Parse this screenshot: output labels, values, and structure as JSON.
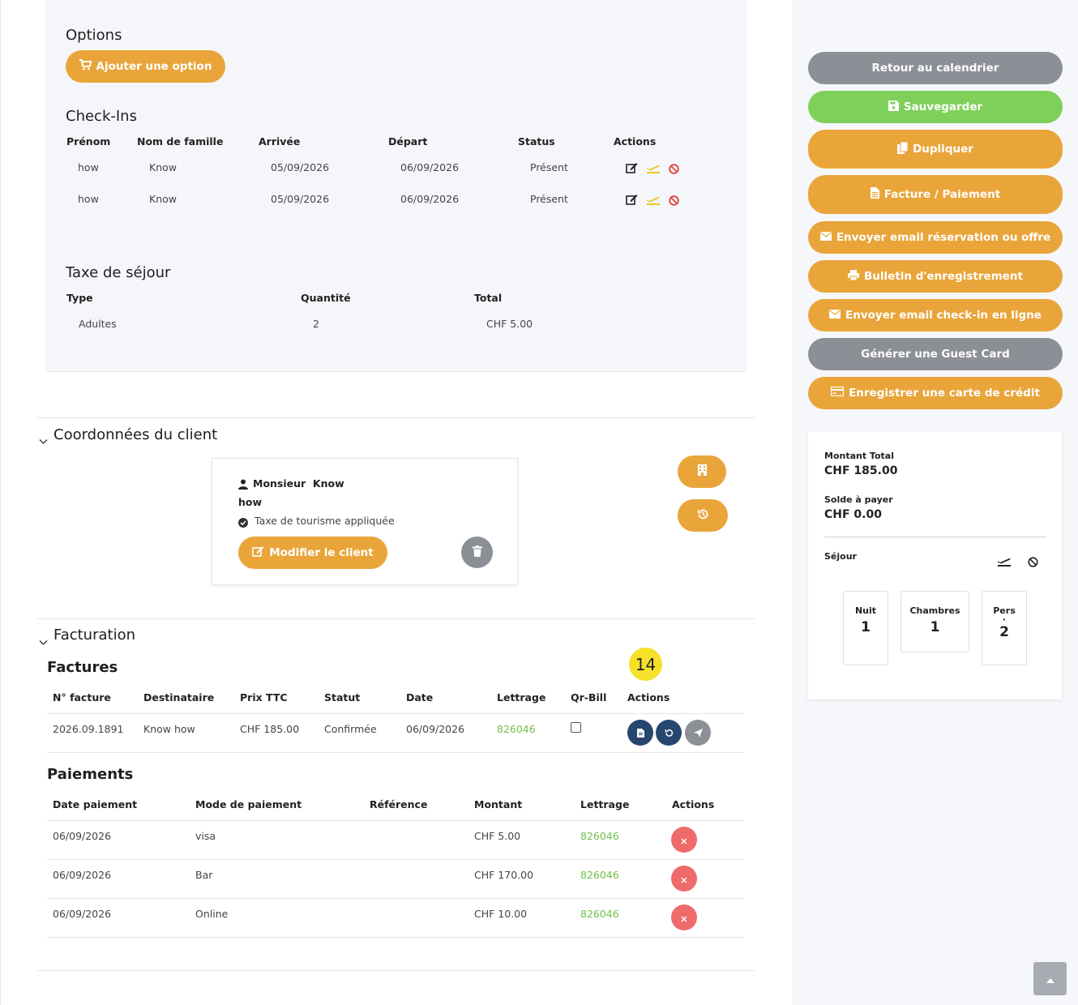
{
  "options": {
    "title": "Options",
    "add_button": "Ajouter une option"
  },
  "checkins": {
    "title": "Check-Ins",
    "headers": [
      "Prénom",
      "Nom de famille",
      "Arrivée",
      "Départ",
      "Status",
      "Actions"
    ],
    "rows": [
      {
        "prenom": "how",
        "nom": "Know",
        "arrivee": "05/09/2026",
        "depart": "06/09/2026",
        "status": "Présent"
      },
      {
        "prenom": "how",
        "nom": "Know",
        "arrivee": "05/09/2026",
        "depart": "06/09/2026",
        "status": "Présent"
      }
    ]
  },
  "taxe": {
    "title": "Taxe de séjour",
    "headers": [
      "Type",
      "Quantité",
      "Total"
    ],
    "rows": [
      {
        "type": "Adultes",
        "quantite": "2",
        "total": "CHF 5.00"
      }
    ]
  },
  "client": {
    "section_title": "Coordonnées du client",
    "name_line": "Monsieur  Know",
    "first_name": "how",
    "tax_note": "Taxe de tourisme appliquée",
    "edit_button": "Modifier le client"
  },
  "billing": {
    "section_title": "Facturation",
    "badge": "14",
    "invoices": {
      "title": "Factures",
      "headers": [
        "N° facture",
        "Destinataire",
        "Prix TTC",
        "Statut",
        "Date",
        "Lettrage",
        "Qr-Bill",
        "Actions"
      ],
      "rows": [
        {
          "numero": "2026.09.1891",
          "destinataire": "Know how",
          "prix": "CHF 185.00",
          "statut": "Confirmée",
          "date": "06/09/2026",
          "lettrage": "826046"
        }
      ]
    },
    "payments": {
      "title": "Paiements",
      "headers": [
        "Date paiement",
        "Mode de paiement",
        "Référence",
        "Montant",
        "Lettrage",
        "Actions"
      ],
      "rows": [
        {
          "date": "06/09/2026",
          "mode": "visa",
          "reference": "",
          "montant": "CHF 5.00",
          "lettrage": "826046"
        },
        {
          "date": "06/09/2026",
          "mode": "Bar",
          "reference": "",
          "montant": "CHF 170.00",
          "lettrage": "826046"
        },
        {
          "date": "06/09/2026",
          "mode": "Online",
          "reference": "",
          "montant": "CHF 10.00",
          "lettrage": "826046"
        }
      ]
    }
  },
  "sidebar": {
    "buttons": {
      "retour": "Retour au calendrier",
      "sauvegarder": "Sauvegarder",
      "dupliquer": "Dupliquer",
      "facture": "Facture / Paiement",
      "email_reservation": "Envoyer email réservation ou offre",
      "bulletin": "Bulletin d'enregistrement",
      "email_checkin": "Envoyer email check-in en ligne",
      "guest_card": "Générer une Guest Card",
      "carte_credit": "Enregistrer une carte de crédit"
    },
    "summary": {
      "montant_total_label": "Montant Total",
      "montant_total": "CHF 185.00",
      "solde_label": "Solde à payer",
      "solde": "CHF 0.00",
      "sejour_label": "Séjour",
      "nuit_label": "Nuit",
      "nuit": "1",
      "chambres_label": "Chambres",
      "chambres": "1",
      "pers_label": "Pers",
      "pers_sep": "·",
      "pers": "2"
    }
  },
  "colors": {
    "orange": "#e9a53a",
    "gray": "#8c8f96",
    "green": "#7fd05b",
    "navy": "#27466f",
    "red": "#ef6b6b",
    "badge": "#f7e02a"
  }
}
